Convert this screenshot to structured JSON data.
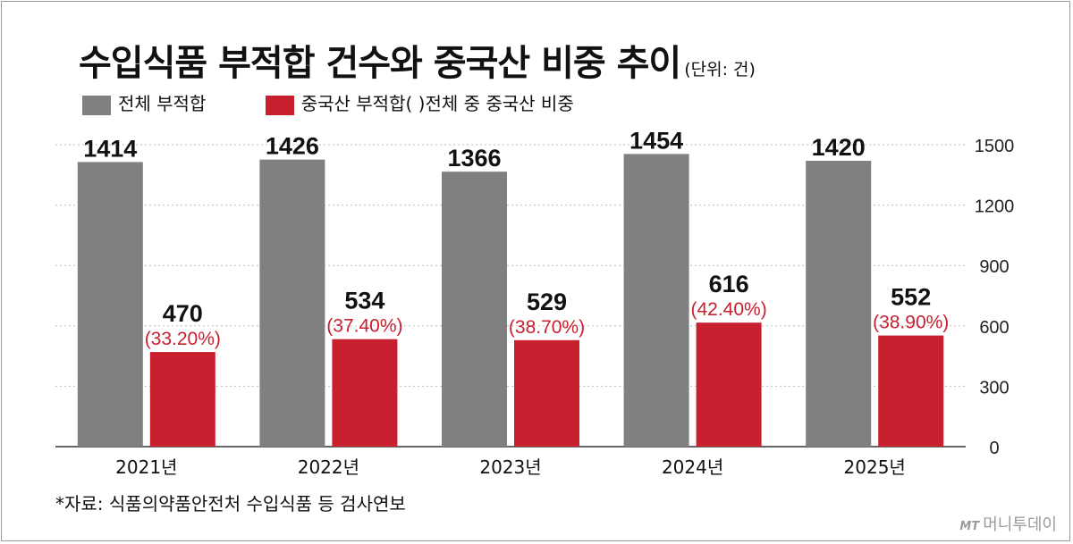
{
  "chart_data": {
    "type": "bar",
    "title": "수입식품 부적합 건수와 중국산 비중 추이",
    "unit": "(단위: 건)",
    "categories": [
      "2021년",
      "2022년",
      "2023년",
      "2024년",
      "2025년"
    ],
    "series": [
      {
        "name": "전체 부적합",
        "color": "#808080",
        "values": [
          1414,
          1426,
          1366,
          1454,
          1420
        ]
      },
      {
        "name": "중국산 부적합",
        "color": "#c8202f",
        "values": [
          470,
          534,
          529,
          616,
          552
        ],
        "share_labels": [
          "(33.20%)",
          "(37.40%)",
          "(38.70%)",
          "(42.40%)",
          "(38.90%)"
        ]
      }
    ],
    "legend_note": "(  )전체 중 중국산 비중",
    "ylim": [
      0,
      1500
    ],
    "yticks": [
      0,
      300,
      600,
      900,
      1200,
      1500
    ],
    "grid": true,
    "legend_position": "top-left",
    "source": "*자료: 식품의약품안전처 수입식품 등 검사연보",
    "logo": {
      "mark": "MT",
      "text": "머니투데이"
    }
  }
}
